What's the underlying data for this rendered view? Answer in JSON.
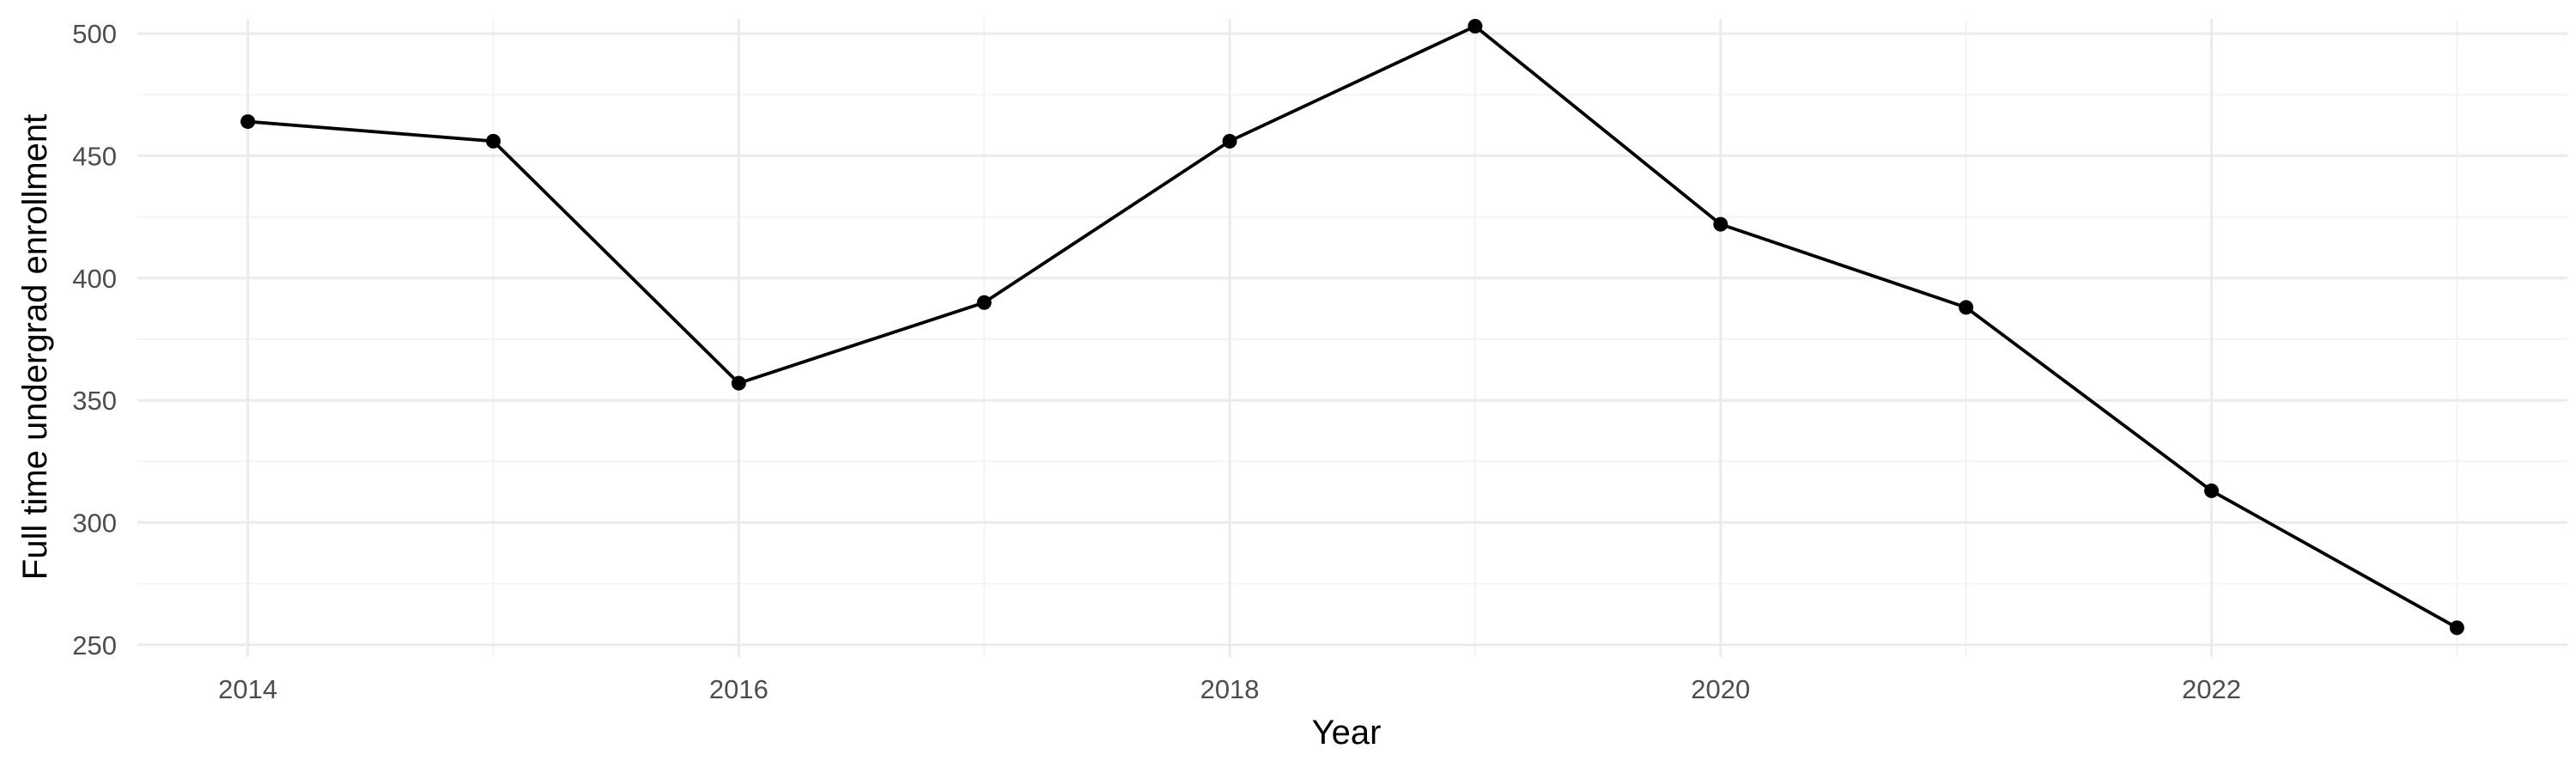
{
  "chart_data": {
    "type": "line",
    "title": "",
    "xlabel": "Year",
    "ylabel": "Full time undergrad enrollment",
    "x": [
      2014,
      2015,
      2016,
      2017,
      2018,
      2019,
      2020,
      2021,
      2022,
      2023
    ],
    "series": [
      {
        "values": [
          464,
          456,
          357,
          390,
          456,
          503,
          422,
          388,
          313,
          257
        ]
      }
    ],
    "x_ticks": [
      2014,
      2016,
      2018,
      2020,
      2022
    ],
    "x_tick_labels": [
      "2014",
      "2016",
      "2018",
      "2020",
      "2022"
    ],
    "y_ticks": [
      250,
      300,
      350,
      400,
      450,
      500
    ],
    "y_tick_labels": [
      "250",
      "300",
      "350",
      "400",
      "450",
      "500"
    ],
    "xlim": [
      2013.55,
      2023.45
    ],
    "ylim": [
      245,
      506
    ],
    "grid": true,
    "legend": "none",
    "colors": {
      "line": "#000000",
      "point": "#000000"
    }
  }
}
